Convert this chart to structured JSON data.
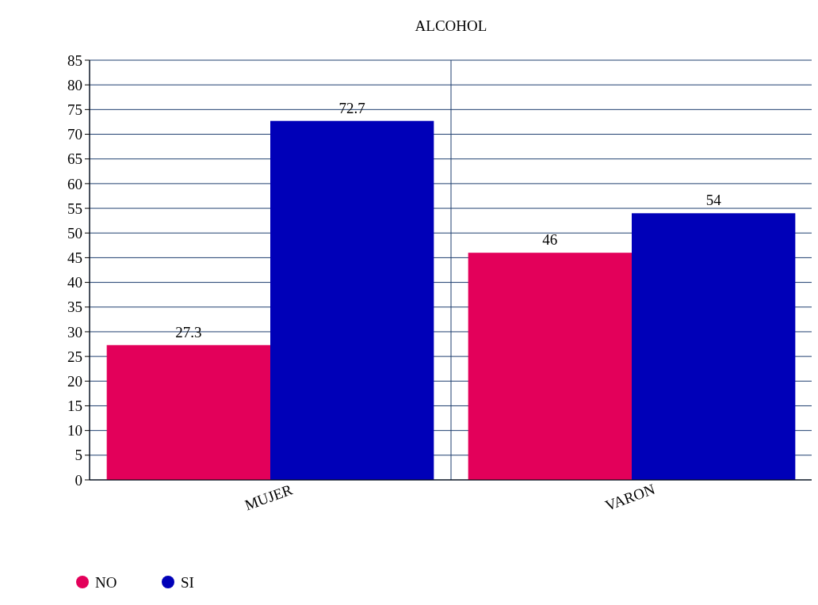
{
  "chart_data": {
    "type": "bar",
    "title": "ALCOHOL",
    "categories": [
      "MUJER",
      "VARON"
    ],
    "series": [
      {
        "name": "NO",
        "color": "#e3005a",
        "values": [
          27.3,
          46
        ]
      },
      {
        "name": "SI",
        "color": "#0000b8",
        "values": [
          72.7,
          54
        ]
      }
    ],
    "ylim": [
      0,
      85
    ],
    "yticks": [
      0,
      5,
      10,
      15,
      20,
      25,
      30,
      35,
      40,
      45,
      50,
      55,
      60,
      65,
      70,
      75,
      80,
      85
    ],
    "grid": true,
    "legend": "bottom left",
    "data_labels": true
  }
}
